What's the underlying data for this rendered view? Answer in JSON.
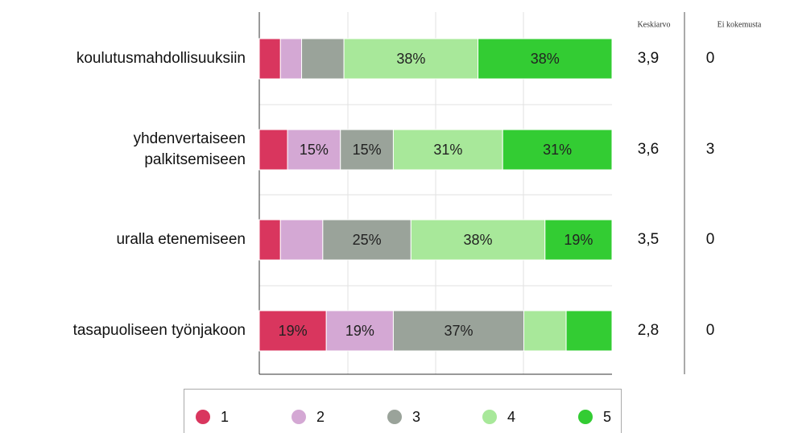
{
  "chart_data": {
    "type": "stacked_bar_horizontal",
    "categories": [
      "koulutusmahdollisuuksiin",
      "yhdenvertaiseen\npalkitsemiseen",
      "uralla etenemiseen",
      "tasapuoliseen työnjakoon"
    ],
    "xlim": [
      0,
      100
    ],
    "series": [
      {
        "name": "1",
        "color": "#d9365e",
        "values": [
          6,
          8,
          6,
          19
        ],
        "value_labels": [
          null,
          null,
          null,
          "19%"
        ]
      },
      {
        "name": "2",
        "color": "#d4a8d4",
        "values": [
          6,
          15,
          12,
          19
        ],
        "value_labels": [
          null,
          "15%",
          null,
          "19%"
        ]
      },
      {
        "name": "3",
        "color": "#9aa39a",
        "values": [
          12,
          15,
          25,
          37
        ],
        "value_labels": [
          null,
          "15%",
          "25%",
          "37%"
        ]
      },
      {
        "name": "4",
        "color": "#a8e89a",
        "values": [
          38,
          31,
          38,
          12
        ],
        "value_labels": [
          "38%",
          "31%",
          "38%",
          null
        ]
      },
      {
        "name": "5",
        "color": "#33cc33",
        "values": [
          38,
          31,
          19,
          13
        ],
        "value_labels": [
          "38%",
          "31%",
          "19%",
          null
        ]
      }
    ],
    "columns": [
      {
        "header": "Keskiarvo",
        "values": [
          "3,9",
          "3,6",
          "3,5",
          "2,8"
        ]
      },
      {
        "header": "Ei kokemusta",
        "values": [
          0,
          3,
          0,
          0
        ]
      }
    ]
  }
}
